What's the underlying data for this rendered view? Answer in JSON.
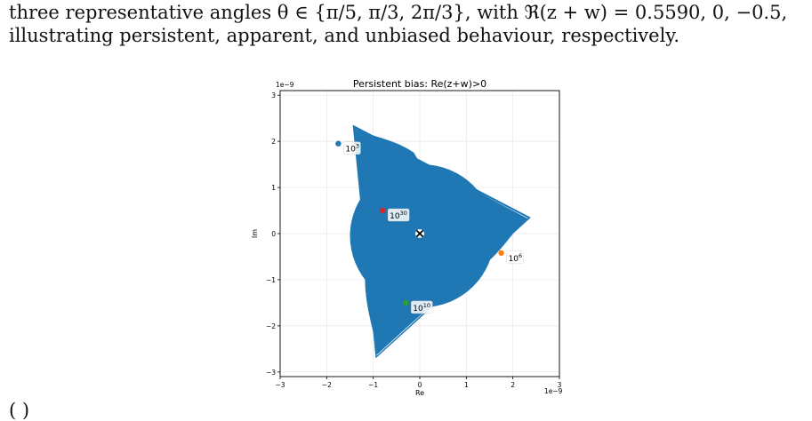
{
  "caption": {
    "line1": "three representative angles θ ∈ {π/5,  π/3,  2π/3}, with ℜ(z + w) = 0.5590,  0,  −0.5,",
    "line2": "illustrating persistent, apparent, and unbiased behaviour, respectively.",
    "bottom_fragment": "(            )"
  },
  "colors": {
    "trajectory": "#1f77b4",
    "marker_blue": "#1f77b4",
    "marker_orange": "#ff7f0e",
    "marker_green": "#2ca02c",
    "marker_red": "#d62728"
  },
  "chart_data": {
    "type": "line",
    "title": "Persistent bias: Re(z+w)>0",
    "xlabel": "Re",
    "ylabel": "Im",
    "x_offset_label": "1e−9",
    "y_offset_label": "1e−9",
    "xlim": [
      -3,
      3
    ],
    "ylim": [
      -3.1,
      3.1
    ],
    "x_ticks": [
      "−3",
      "−2",
      "−1",
      "0",
      "1",
      "2",
      "3"
    ],
    "y_ticks": [
      "3",
      "2",
      "1",
      "0",
      "−1",
      "−2",
      "−3"
    ],
    "grid": true,
    "annotations": [
      {
        "label_base": "10",
        "label_exp": "3",
        "x": -1.75,
        "y": 1.95,
        "color": "blue"
      },
      {
        "label_base": "10",
        "label_exp": "6",
        "x": 1.75,
        "y": -0.42,
        "color": "orange"
      },
      {
        "label_base": "10",
        "label_exp": "10",
        "x": -0.3,
        "y": -1.5,
        "color": "green"
      },
      {
        "label_base": "10",
        "label_exp": "30",
        "x": -0.8,
        "y": 0.5,
        "color": "red"
      }
    ],
    "center_marker": {
      "x": 0,
      "y": 0,
      "symbol": "x"
    }
  }
}
